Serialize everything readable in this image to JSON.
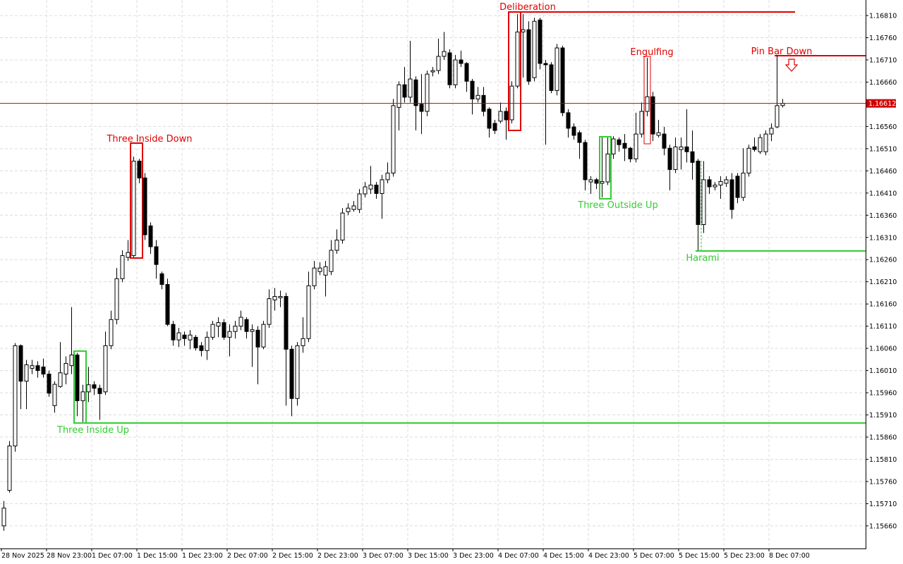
{
  "chart_data": {
    "type": "candlestick",
    "ylim": [
      1.15609,
      1.16845
    ],
    "yticks": [
      {
        "value": 1.1681,
        "label": "1.16810"
      },
      {
        "value": 1.1676,
        "label": "1.16760"
      },
      {
        "value": 1.1671,
        "label": "1.16710"
      },
      {
        "value": 1.1666,
        "label": "1.16660"
      },
      {
        "value": 1.1656,
        "label": "1.16560"
      },
      {
        "value": 1.1651,
        "label": "1.16510"
      },
      {
        "value": 1.1646,
        "label": "1.16460"
      },
      {
        "value": 1.1641,
        "label": "1.16410"
      },
      {
        "value": 1.1636,
        "label": "1.16360"
      },
      {
        "value": 1.1631,
        "label": "1.16310"
      },
      {
        "value": 1.1626,
        "label": "1.16260"
      },
      {
        "value": 1.1621,
        "label": "1.16210"
      },
      {
        "value": 1.1616,
        "label": "1.16160"
      },
      {
        "value": 1.1611,
        "label": "1.16110"
      },
      {
        "value": 1.1606,
        "label": "1.16060"
      },
      {
        "value": 1.1601,
        "label": "1.16010"
      },
      {
        "value": 1.1596,
        "label": "1.15960"
      },
      {
        "value": 1.1591,
        "label": "1.15910"
      },
      {
        "value": 1.1586,
        "label": "1.15860"
      },
      {
        "value": 1.1581,
        "label": "1.15810"
      },
      {
        "value": 1.1576,
        "label": "1.15760"
      },
      {
        "value": 1.1571,
        "label": "1.15710"
      },
      {
        "value": 1.1566,
        "label": "1.15660"
      }
    ],
    "xticks": [
      {
        "value": 0,
        "label": "28 Nov 2025"
      },
      {
        "value": 8,
        "label": "28 Nov 23:00"
      },
      {
        "value": 16,
        "label": "1 Dec 07:00"
      },
      {
        "value": 24,
        "label": "1 Dec 15:00"
      },
      {
        "value": 32,
        "label": "1 Dec 23:00"
      },
      {
        "value": 40,
        "label": "2 Dec 07:00"
      },
      {
        "value": 48,
        "label": "2 Dec 15:00"
      },
      {
        "value": 56,
        "label": "2 Dec 23:00"
      },
      {
        "value": 64,
        "label": "3 Dec 07:00"
      },
      {
        "value": 72,
        "label": "3 Dec 15:00"
      },
      {
        "value": 80,
        "label": "3 Dec 23:00"
      },
      {
        "value": 88,
        "label": "4 Dec 07:00"
      },
      {
        "value": 96,
        "label": "4 Dec 15:00"
      },
      {
        "value": 104,
        "label": "4 Dec 23:00"
      },
      {
        "value": 112,
        "label": "5 Dec 07:00"
      },
      {
        "value": 120,
        "label": "5 Dec 15:00"
      },
      {
        "value": 128,
        "label": "5 Dec 23:00"
      },
      {
        "value": 136,
        "label": "8 Dec 07:00"
      }
    ],
    "current_price": {
      "value": 1.16612,
      "label": "1.16612"
    },
    "grid": true,
    "annotations": [
      "Three Inside Up",
      "Three Inside Down",
      "Deliberation",
      "Three Outside Up",
      "Engulfing",
      "Harami",
      "Pin Bar Down"
    ],
    "candles": [
      [
        1.1566,
        1.15716,
        1.15649,
        1.157
      ],
      [
        1.1574,
        1.15851,
        1.15735,
        1.1584
      ],
      [
        1.1584,
        1.16072,
        1.15827,
        1.16066
      ],
      [
        1.16066,
        1.16069,
        1.15923,
        1.15986
      ],
      [
        1.15986,
        1.16034,
        1.15923,
        1.16023
      ],
      [
        1.16015,
        1.16034,
        1.16002,
        1.16021
      ],
      [
        1.16021,
        1.16031,
        1.15994,
        1.1601
      ],
      [
        1.16018,
        1.16037,
        1.15994,
        1.16002
      ],
      [
        1.16002,
        1.1601,
        1.15951,
        1.15959
      ],
      [
        1.15931,
        1.15986,
        1.15915,
        1.15979
      ],
      [
        1.15974,
        1.16074,
        1.15971,
        1.16005
      ],
      [
        1.16002,
        1.16042,
        1.15979,
        1.16026
      ],
      [
        1.16021,
        1.16153,
        1.16002,
        1.16045
      ],
      [
        1.16045,
        1.1605,
        1.15907,
        1.15942
      ],
      [
        1.15942,
        1.15978,
        1.15894,
        1.15962
      ],
      [
        1.15962,
        1.16018,
        1.15939,
        1.15978
      ],
      [
        1.15978,
        1.15986,
        1.15955,
        1.1597
      ],
      [
        1.1597,
        1.15978,
        1.15899,
        1.15958
      ],
      [
        1.15962,
        1.16098,
        1.15955,
        1.16066
      ],
      [
        1.16066,
        1.16145,
        1.16058,
        1.16125
      ],
      [
        1.16125,
        1.16241,
        1.16114,
        1.16217
      ],
      [
        1.16217,
        1.16281,
        1.16209,
        1.16269
      ],
      [
        1.16265,
        1.16304,
        1.16257,
        1.16276
      ],
      [
        1.16269,
        1.16492,
        1.16265,
        1.16482
      ],
      [
        1.16482,
        1.16487,
        1.16432,
        1.16444
      ],
      [
        1.16444,
        1.16455,
        1.16304,
        1.16316
      ],
      [
        1.16336,
        1.16344,
        1.16273,
        1.16289
      ],
      [
        1.16289,
        1.16304,
        1.16217,
        1.16249
      ],
      [
        1.16228,
        1.16233,
        1.16193,
        1.16204
      ],
      [
        1.16204,
        1.16217,
        1.1611,
        1.16114
      ],
      [
        1.16114,
        1.16122,
        1.16066,
        1.16079
      ],
      [
        1.16079,
        1.16106,
        1.16063,
        1.16095
      ],
      [
        1.1609,
        1.16098,
        1.16066,
        1.16082
      ],
      [
        1.16079,
        1.16101,
        1.16058,
        1.1609
      ],
      [
        1.16085,
        1.1609,
        1.16055,
        1.16061
      ],
      [
        1.16066,
        1.16074,
        1.16042,
        1.16055
      ],
      [
        1.16055,
        1.16098,
        1.16034,
        1.16085
      ],
      [
        1.16085,
        1.16122,
        1.16079,
        1.16114
      ],
      [
        1.1611,
        1.1613,
        1.16085,
        1.16118
      ],
      [
        1.16118,
        1.16126,
        1.16079,
        1.16085
      ],
      [
        1.16085,
        1.16114,
        1.16042,
        1.16098
      ],
      [
        1.16098,
        1.16122,
        1.16082,
        1.1611
      ],
      [
        1.1611,
        1.16145,
        1.16101,
        1.1613
      ],
      [
        1.16125,
        1.1613,
        1.16082,
        1.16098
      ],
      [
        1.16098,
        1.16114,
        1.16018,
        1.16102
      ],
      [
        1.16101,
        1.1611,
        1.15979,
        1.16063
      ],
      [
        1.16063,
        1.16122,
        1.16058,
        1.16114
      ],
      [
        1.16114,
        1.16193,
        1.16106,
        1.16172
      ],
      [
        1.16169,
        1.16196,
        1.16145,
        1.16177
      ],
      [
        1.16174,
        1.1619,
        1.16153,
        1.16177
      ],
      [
        1.16177,
        1.16185,
        1.15931,
        1.16058
      ],
      [
        1.16058,
        1.16066,
        1.15907,
        1.15947
      ],
      [
        1.15947,
        1.16074,
        1.15931,
        1.16066
      ],
      [
        1.16066,
        1.1613,
        1.1605,
        1.16082
      ],
      [
        1.16082,
        1.16233,
        1.16074,
        1.16201
      ],
      [
        1.16201,
        1.16257,
        1.16193,
        1.16241
      ],
      [
        1.16233,
        1.16254,
        1.16225,
        1.16241
      ],
      [
        1.16225,
        1.16257,
        1.16177,
        1.16244
      ],
      [
        1.16233,
        1.16304,
        1.16225,
        1.16281
      ],
      [
        1.16281,
        1.16328,
        1.16273,
        1.16304
      ],
      [
        1.16304,
        1.16376,
        1.16296,
        1.16365
      ],
      [
        1.16368,
        1.16387,
        1.1636,
        1.16376
      ],
      [
        1.16373,
        1.16392,
        1.16368,
        1.16381
      ],
      [
        1.16373,
        1.16419,
        1.16365,
        1.16408
      ],
      [
        1.16408,
        1.16435,
        1.164,
        1.16424
      ],
      [
        1.16419,
        1.16471,
        1.16408,
        1.16428
      ],
      [
        1.16428,
        1.16435,
        1.16397,
        1.16409
      ],
      [
        1.16409,
        1.16451,
        1.16352,
        1.1644
      ],
      [
        1.1644,
        1.16479,
        1.16432,
        1.16455
      ],
      [
        1.16455,
        1.16622,
        1.16447,
        1.16607
      ],
      [
        1.16603,
        1.16662,
        1.16551,
        1.16654
      ],
      [
        1.16654,
        1.16694,
        1.16614,
        1.16626
      ],
      [
        1.16626,
        1.16753,
        1.16614,
        1.16667
      ],
      [
        1.16665,
        1.16673,
        1.16551,
        1.16607
      ],
      [
        1.1661,
        1.16678,
        1.16543,
        1.16594
      ],
      [
        1.16594,
        1.16686,
        1.16583,
        1.16678
      ],
      [
        1.16683,
        1.16694,
        1.16673,
        1.16686
      ],
      [
        1.16686,
        1.16758,
        1.16678,
        1.16718
      ],
      [
        1.16718,
        1.16773,
        1.1671,
        1.16729
      ],
      [
        1.16726,
        1.16734,
        1.16646,
        1.16654
      ],
      [
        1.16654,
        1.16721,
        1.16646,
        1.1671
      ],
      [
        1.1671,
        1.16731,
        1.16694,
        1.16702
      ],
      [
        1.16702,
        1.16705,
        1.16638,
        1.16662
      ],
      [
        1.16662,
        1.16667,
        1.16587,
        1.16622
      ],
      [
        1.16622,
        1.16649,
        1.16614,
        1.1663
      ],
      [
        1.1663,
        1.16649,
        1.16583,
        1.16594
      ],
      [
        1.16599,
        1.16603,
        1.16535,
        1.16556
      ],
      [
        1.16567,
        1.16575,
        1.16543,
        1.16551
      ],
      [
        1.16572,
        1.16614,
        1.16567,
        1.16594
      ],
      [
        1.16594,
        1.16603,
        1.1653,
        1.16575
      ],
      [
        1.16575,
        1.16662,
        1.16567,
        1.16651
      ],
      [
        1.16651,
        1.16813,
        1.16646,
        1.16773
      ],
      [
        1.16773,
        1.16813,
        1.1667,
        1.16778
      ],
      [
        1.16778,
        1.16797,
        1.16654,
        1.16662
      ],
      [
        1.1667,
        1.16805,
        1.16662,
        1.16797
      ],
      [
        1.168,
        1.16805,
        1.16689,
        1.16702
      ],
      [
        1.16702,
        1.1671,
        1.16519,
        1.16699
      ],
      [
        1.16699,
        1.16705,
        1.16635,
        1.16641
      ],
      [
        1.16641,
        1.16746,
        1.1663,
        1.16737
      ],
      [
        1.16737,
        1.16742,
        1.16583,
        1.16591
      ],
      [
        1.16591,
        1.16599,
        1.16535,
        1.16556
      ],
      [
        1.16559,
        1.16567,
        1.1653,
        1.1654
      ],
      [
        1.16546,
        1.16551,
        1.16487,
        1.16524
      ],
      [
        1.16524,
        1.1653,
        1.16416,
        1.1644
      ],
      [
        1.16435,
        1.16448,
        1.16408,
        1.1644
      ],
      [
        1.1644,
        1.16444,
        1.16419,
        1.16432
      ],
      [
        1.16432,
        1.16535,
        1.164,
        1.16436
      ],
      [
        1.16435,
        1.16535,
        1.16428,
        1.16498
      ],
      [
        1.16498,
        1.16538,
        1.16487,
        1.16532
      ],
      [
        1.1653,
        1.16535,
        1.16503,
        1.16519
      ],
      [
        1.16522,
        1.16543,
        1.16482,
        1.16511
      ],
      [
        1.16511,
        1.16514,
        1.16479,
        1.16487
      ],
      [
        1.16487,
        1.16591,
        1.16479,
        1.16543
      ],
      [
        1.16543,
        1.16614,
        1.16535,
        1.16594
      ],
      [
        1.16594,
        1.16715,
        1.16583,
        1.16627
      ],
      [
        1.16627,
        1.16638,
        1.16527,
        1.16543
      ],
      [
        1.1654,
        1.16575,
        1.16535,
        1.16546
      ],
      [
        1.16543,
        1.16559,
        1.16495,
        1.16511
      ],
      [
        1.16511,
        1.16519,
        1.16416,
        1.16463
      ],
      [
        1.16463,
        1.16535,
        1.16455,
        1.16514
      ],
      [
        1.16508,
        1.16535,
        1.16463,
        1.16514
      ],
      [
        1.16514,
        1.16599,
        1.16479,
        1.16503
      ],
      [
        1.16503,
        1.16551,
        1.1644,
        1.16479
      ],
      [
        1.16482,
        1.16487,
        1.16281,
        1.16339
      ],
      [
        1.16339,
        1.16482,
        1.1632,
        1.1644
      ],
      [
        1.1644,
        1.16448,
        1.16408,
        1.16424
      ],
      [
        1.16424,
        1.16435,
        1.16416,
        1.16428
      ],
      [
        1.16428,
        1.16448,
        1.16397,
        1.16436
      ],
      [
        1.16432,
        1.16448,
        1.16424,
        1.1644
      ],
      [
        1.1644,
        1.16455,
        1.16352,
        1.16373
      ],
      [
        1.16448,
        1.16455,
        1.16387,
        1.164
      ],
      [
        1.164,
        1.16511,
        1.16392,
        1.16455
      ],
      [
        1.16455,
        1.16519,
        1.16447,
        1.16511
      ],
      [
        1.16514,
        1.16535,
        1.16503,
        1.16508
      ],
      [
        1.16503,
        1.16543,
        1.16498,
        1.16535
      ],
      [
        1.16503,
        1.16551,
        1.16495,
        1.16543
      ],
      [
        1.16543,
        1.16567,
        1.16527,
        1.16556
      ],
      [
        1.16559,
        1.16721,
        1.16556,
        1.16607
      ],
      [
        1.16607,
        1.16622,
        1.16603,
        1.16612
      ]
    ]
  }
}
